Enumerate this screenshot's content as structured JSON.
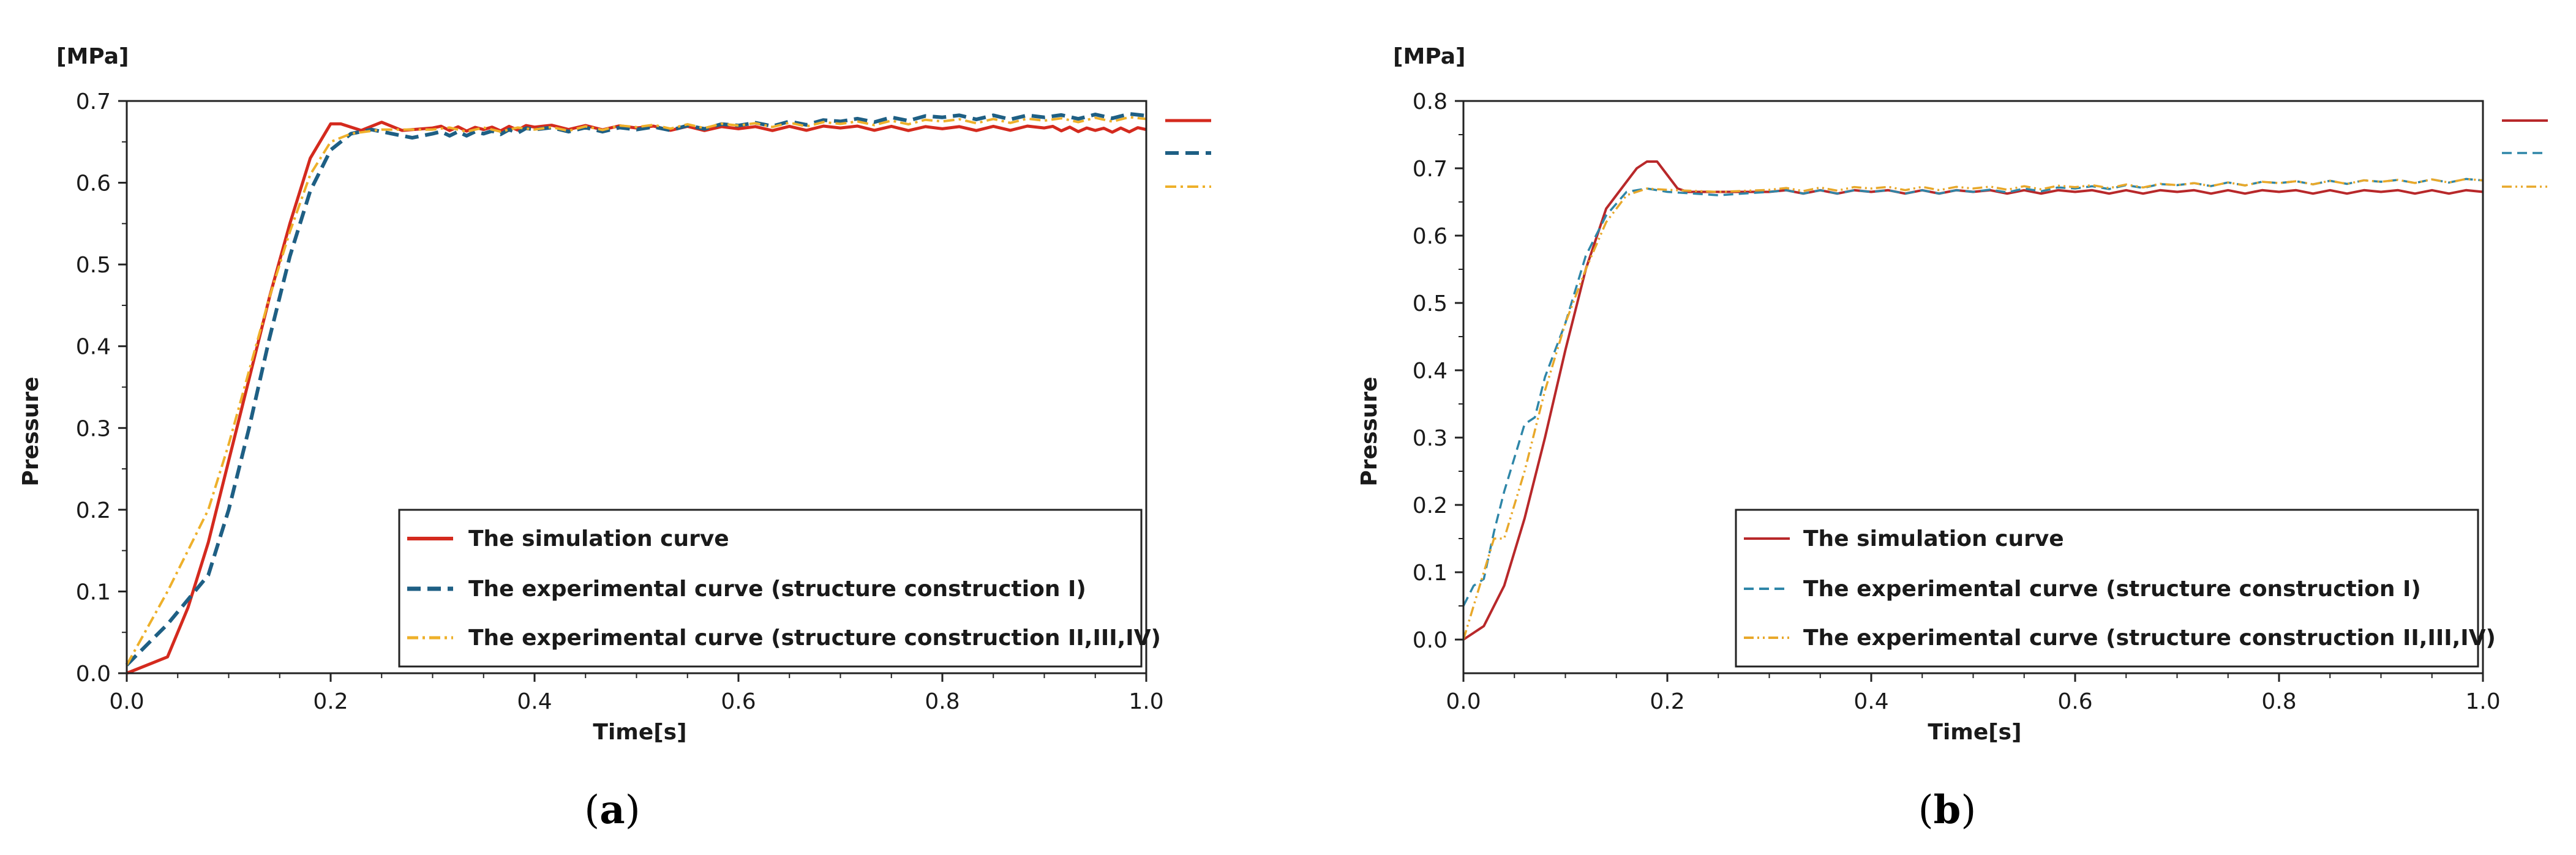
{
  "chart_data": [
    {
      "panel": "a",
      "type": "line",
      "unit_label": "[MPa]",
      "ylabel": "Pressure",
      "xlabel": "Time[s]",
      "xlim": [
        0.0,
        1.0
      ],
      "ylim": [
        0.0,
        0.7
      ],
      "x_ticks": [
        "0.0",
        "0.2",
        "0.4",
        "0.6",
        "0.8",
        "1.0"
      ],
      "y_ticks": [
        "0.0",
        "0.1",
        "0.2",
        "0.3",
        "0.4",
        "0.5",
        "0.6",
        "0.7"
      ],
      "grid": false,
      "legend_position": "bottom-right",
      "series": [
        {
          "name": "The simulation curve",
          "color": "#d42a1e",
          "dash": "solid",
          "x": [
            0,
            0.04,
            0.06,
            0.08,
            0.1,
            0.12,
            0.14,
            0.16,
            0.18,
            0.2,
            0.21,
            0.23,
            0.25,
            0.27,
            0.3,
            0.35,
            0.4,
            0.5,
            0.6,
            0.7,
            0.8,
            0.9,
            0.95,
            1.0
          ],
          "y": [
            0,
            0.02,
            0.08,
            0.16,
            0.26,
            0.36,
            0.46,
            0.55,
            0.63,
            0.672,
            0.672,
            0.664,
            0.674,
            0.664,
            0.667,
            0.665,
            0.668,
            0.667,
            0.666,
            0.667,
            0.666,
            0.667,
            0.664,
            0.665
          ]
        },
        {
          "name": "The experimental curve (structure construction I)",
          "color": "#1e5f84",
          "dash": "dashed",
          "x": [
            0,
            0.04,
            0.08,
            0.1,
            0.12,
            0.14,
            0.16,
            0.18,
            0.2,
            0.22,
            0.24,
            0.26,
            0.28,
            0.3,
            0.35,
            0.4,
            0.5,
            0.6,
            0.7,
            0.8,
            0.9,
            1.0
          ],
          "y": [
            0.01,
            0.06,
            0.12,
            0.2,
            0.3,
            0.41,
            0.51,
            0.59,
            0.64,
            0.66,
            0.665,
            0.66,
            0.655,
            0.66,
            0.66,
            0.665,
            0.665,
            0.67,
            0.675,
            0.68,
            0.68,
            0.682
          ]
        },
        {
          "name": "The experimental curve (structure construction II,III,IV)",
          "color": "#eeb02a",
          "dash": "dashdot",
          "x": [
            0,
            0.04,
            0.08,
            0.1,
            0.12,
            0.14,
            0.16,
            0.18,
            0.2,
            0.22,
            0.25,
            0.3,
            0.4,
            0.5,
            0.6,
            0.7,
            0.8,
            0.9,
            1.0
          ],
          "y": [
            0.01,
            0.1,
            0.2,
            0.28,
            0.37,
            0.46,
            0.54,
            0.61,
            0.65,
            0.66,
            0.665,
            0.665,
            0.665,
            0.668,
            0.67,
            0.672,
            0.675,
            0.676,
            0.678
          ]
        }
      ]
    },
    {
      "panel": "b",
      "type": "line",
      "unit_label": "[MPa]",
      "ylabel": "Pressure",
      "xlabel": "Time[s]",
      "xlim": [
        0.0,
        1.0
      ],
      "ylim": [
        -0.05,
        0.8
      ],
      "x_ticks": [
        "0.0",
        "0.2",
        "0.4",
        "0.6",
        "0.8",
        "1.0"
      ],
      "y_ticks": [
        "0.0",
        "0.1",
        "0.2",
        "0.3",
        "0.4",
        "0.5",
        "0.6",
        "0.7",
        "0.8"
      ],
      "grid": false,
      "legend_position": "bottom-right",
      "series": [
        {
          "name": "The simulation curve",
          "color": "#b8282a",
          "dash": "solid",
          "x": [
            0,
            0.01,
            0.02,
            0.04,
            0.06,
            0.08,
            0.1,
            0.12,
            0.14,
            0.16,
            0.17,
            0.18,
            0.19,
            0.2,
            0.21,
            0.22,
            0.25,
            0.3,
            0.4,
            0.5,
            0.6,
            0.7,
            0.8,
            0.9,
            1.0
          ],
          "y": [
            0.0,
            0.01,
            0.02,
            0.08,
            0.18,
            0.3,
            0.43,
            0.55,
            0.64,
            0.68,
            0.7,
            0.71,
            0.71,
            0.69,
            0.67,
            0.665,
            0.665,
            0.665,
            0.665,
            0.665,
            0.665,
            0.665,
            0.665,
            0.665,
            0.665
          ]
        },
        {
          "name": "The experimental curve (structure construction I)",
          "color": "#2e86a8",
          "dash": "dashed",
          "x": [
            0,
            0.01,
            0.02,
            0.03,
            0.04,
            0.05,
            0.06,
            0.07,
            0.08,
            0.1,
            0.12,
            0.14,
            0.16,
            0.18,
            0.2,
            0.25,
            0.3,
            0.4,
            0.5,
            0.6,
            0.7,
            0.8,
            0.9,
            1.0
          ],
          "y": [
            0.05,
            0.08,
            0.09,
            0.16,
            0.22,
            0.27,
            0.32,
            0.33,
            0.39,
            0.47,
            0.57,
            0.63,
            0.665,
            0.67,
            0.665,
            0.66,
            0.665,
            0.665,
            0.665,
            0.67,
            0.675,
            0.678,
            0.68,
            0.682
          ]
        },
        {
          "name": "The experimental curve (structure construction II,III,IV)",
          "color": "#e8a82a",
          "dash": "dashdot",
          "x": [
            0,
            0.02,
            0.03,
            0.04,
            0.06,
            0.08,
            0.1,
            0.12,
            0.14,
            0.16,
            0.18,
            0.2,
            0.25,
            0.3,
            0.4,
            0.5,
            0.6,
            0.7,
            0.8,
            0.9,
            1.0
          ],
          "y": [
            0.0,
            0.1,
            0.15,
            0.15,
            0.25,
            0.37,
            0.47,
            0.55,
            0.62,
            0.66,
            0.67,
            0.668,
            0.665,
            0.668,
            0.67,
            0.67,
            0.672,
            0.675,
            0.678,
            0.68,
            0.682
          ]
        }
      ]
    }
  ],
  "panel_labels": [
    {
      "open": "(",
      "letter": "a",
      "close": ")"
    },
    {
      "open": "(",
      "letter": "b",
      "close": ")"
    }
  ]
}
